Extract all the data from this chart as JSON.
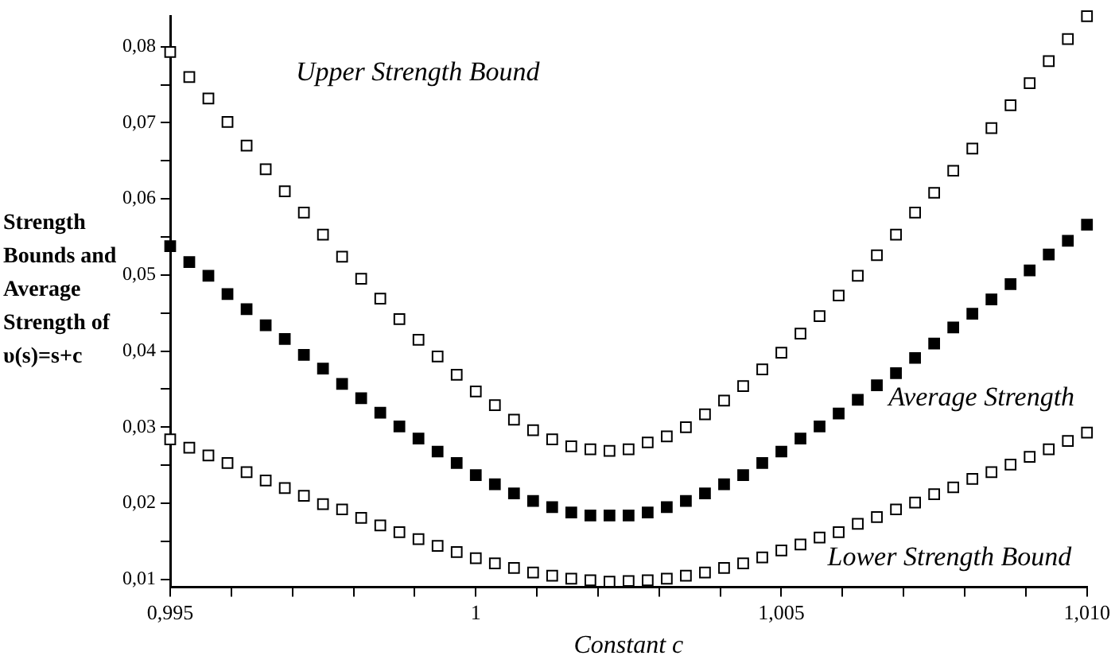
{
  "chart_data": {
    "type": "scatter",
    "xlabel": "Constant c",
    "ylabel": "Strength Bounds and Average Strength of υ(s)=s+c",
    "x": [
      0.995,
      0.9953125,
      0.995625,
      0.9959375,
      0.99625,
      0.9965625,
      0.996875,
      0.9971875,
      0.9975,
      0.9978125,
      0.998125,
      0.9984375,
      0.99875,
      0.9990625,
      0.999375,
      0.9996875,
      1.0,
      1.0003125,
      1.000625,
      1.0009375,
      1.00125,
      1.0015625,
      1.001875,
      1.0021875,
      1.0025,
      1.0028125,
      1.003125,
      1.0034375,
      1.00375,
      1.0040625,
      1.004375,
      1.0046875,
      1.005,
      1.0053125,
      1.005625,
      1.0059375,
      1.00625,
      1.0065625,
      1.006875,
      1.0071875,
      1.0075,
      1.0078125,
      1.008125,
      1.0084375,
      1.00875,
      1.0090625,
      1.009375,
      1.0096875,
      1.01
    ],
    "series": [
      {
        "name": "Upper Strength Bound",
        "color": "#ffffff",
        "values": [
          0.0793,
          0.076,
          0.0732,
          0.0701,
          0.067,
          0.0639,
          0.061,
          0.0582,
          0.0553,
          0.0524,
          0.0495,
          0.0469,
          0.0442,
          0.0415,
          0.0393,
          0.0369,
          0.0347,
          0.0329,
          0.031,
          0.0296,
          0.0284,
          0.0275,
          0.0271,
          0.0269,
          0.0271,
          0.028,
          0.0288,
          0.03,
          0.0317,
          0.0335,
          0.0354,
          0.0376,
          0.0398,
          0.0423,
          0.0446,
          0.0473,
          0.0499,
          0.0526,
          0.0553,
          0.0582,
          0.0608,
          0.0637,
          0.0666,
          0.0693,
          0.0723,
          0.0752,
          0.0781,
          0.081,
          0.084
        ]
      },
      {
        "name": "Average Strength",
        "color": "#000000",
        "values": [
          0.0538,
          0.0517,
          0.0499,
          0.0475,
          0.0455,
          0.0434,
          0.0416,
          0.0395,
          0.0377,
          0.0357,
          0.0338,
          0.0319,
          0.0301,
          0.0285,
          0.0268,
          0.0253,
          0.0237,
          0.0225,
          0.0213,
          0.0203,
          0.0195,
          0.0188,
          0.0184,
          0.0184,
          0.0184,
          0.0188,
          0.0195,
          0.0203,
          0.0213,
          0.0225,
          0.0237,
          0.0253,
          0.0268,
          0.0285,
          0.0301,
          0.0318,
          0.0336,
          0.0355,
          0.0371,
          0.0391,
          0.041,
          0.0431,
          0.0449,
          0.0468,
          0.0488,
          0.0506,
          0.0527,
          0.0545,
          0.0566
        ]
      },
      {
        "name": "Lower Strength Bound",
        "color": "#ffffff",
        "values": [
          0.0284,
          0.0273,
          0.0263,
          0.0253,
          0.0241,
          0.023,
          0.022,
          0.021,
          0.0199,
          0.0192,
          0.0181,
          0.0171,
          0.0162,
          0.0153,
          0.0144,
          0.0136,
          0.0128,
          0.0121,
          0.0115,
          0.0109,
          0.0105,
          0.0101,
          0.0099,
          0.0097,
          0.0098,
          0.0099,
          0.0101,
          0.0105,
          0.0109,
          0.0115,
          0.0121,
          0.0129,
          0.0138,
          0.0146,
          0.0155,
          0.0162,
          0.0173,
          0.0182,
          0.0192,
          0.0201,
          0.0212,
          0.0221,
          0.0232,
          0.0241,
          0.0251,
          0.0261,
          0.0271,
          0.0282,
          0.0293
        ]
      }
    ],
    "marker": "square",
    "grid": false,
    "legend": false,
    "xlim": [
      0.995,
      1.01
    ],
    "xticks": [
      {
        "value": 0.995,
        "label": "0,995"
      },
      {
        "value": 0.996,
        "label": null
      },
      {
        "value": 0.997,
        "label": null
      },
      {
        "value": 0.998,
        "label": null
      },
      {
        "value": 0.999,
        "label": null
      },
      {
        "value": 1,
        "label": "1"
      },
      {
        "value": 1.001,
        "label": null
      },
      {
        "value": 1.002,
        "label": null
      },
      {
        "value": 1.003,
        "label": null
      },
      {
        "value": 1.004,
        "label": null
      },
      {
        "value": 1.005,
        "label": "1,005"
      },
      {
        "value": 1.006,
        "label": null
      },
      {
        "value": 1.007,
        "label": null
      },
      {
        "value": 1.008,
        "label": null
      },
      {
        "value": 1.009,
        "label": null
      },
      {
        "value": 1.01,
        "label": "1,010"
      }
    ],
    "ylim": [
      0.009,
      0.084
    ],
    "yticks": [
      {
        "value": 0.01,
        "label": "0,01"
      },
      {
        "value": 0.015,
        "label": null
      },
      {
        "value": 0.02,
        "label": "0,02"
      },
      {
        "value": 0.025,
        "label": null
      },
      {
        "value": 0.03,
        "label": "0,03"
      },
      {
        "value": 0.035,
        "label": null
      },
      {
        "value": 0.04,
        "label": "0,04"
      },
      {
        "value": 0.045,
        "label": null
      },
      {
        "value": 0.05,
        "label": "0,05"
      },
      {
        "value": 0.055,
        "label": null
      },
      {
        "value": 0.06,
        "label": "0,06"
      },
      {
        "value": 0.065,
        "label": null
      },
      {
        "value": 0.07,
        "label": "0,07"
      },
      {
        "value": 0.075,
        "label": null
      },
      {
        "value": 0.08,
        "label": "0,08"
      }
    ]
  }
}
